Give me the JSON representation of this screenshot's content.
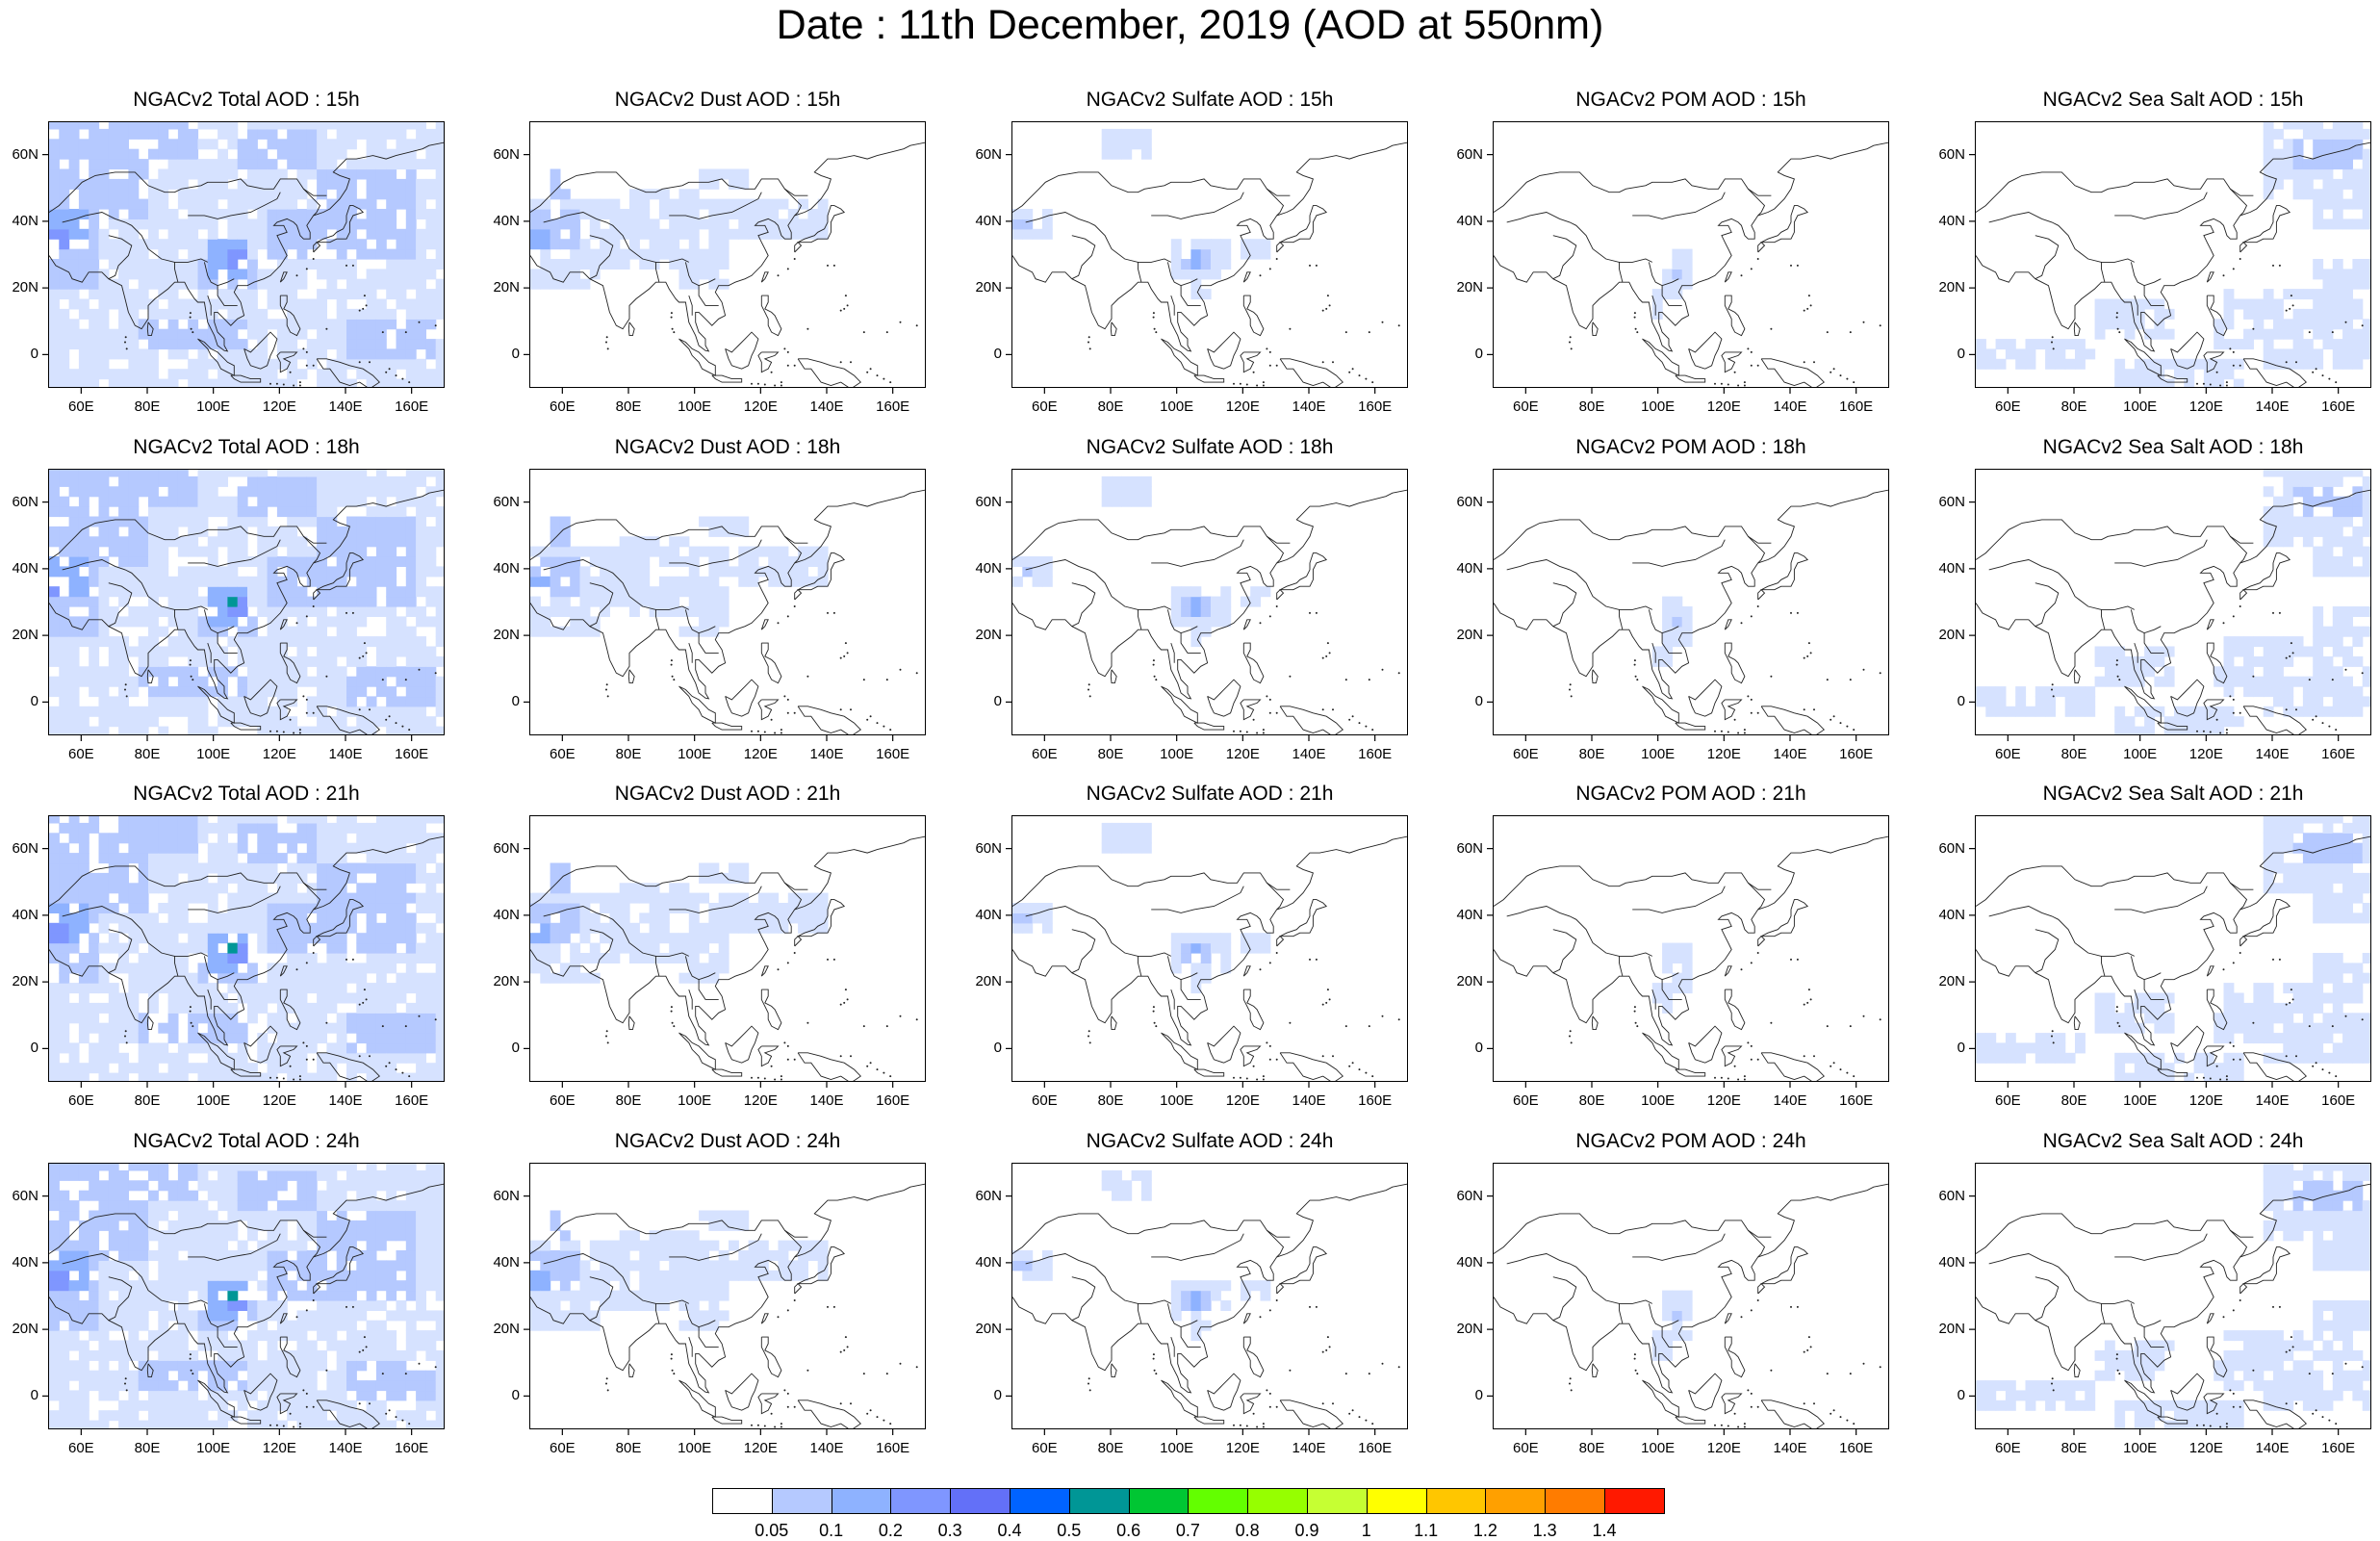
{
  "title": "Date : 11th December, 2019 (AOD at 550nm)",
  "rows": [
    "15h",
    "18h",
    "21h",
    "24h"
  ],
  "panels": [
    [
      "NGACv2 Total AOD : 15h",
      "NGACv2 Dust AOD : 15h",
      "NGACv2 Sulfate AOD : 15h",
      "NGACv2 POM AOD : 15h",
      "NGACv2 Sea Salt AOD : 15h"
    ],
    [
      "NGACv2 Total AOD : 18h",
      "NGACv2 Dust AOD : 18h",
      "NGACv2 Sulfate AOD : 18h",
      "NGACv2 POM AOD : 18h",
      "NGACv2 Sea Salt AOD : 18h"
    ],
    [
      "NGACv2 Total AOD : 21h",
      "NGACv2 Dust AOD : 21h",
      "NGACv2 Sulfate AOD : 21h",
      "NGACv2 POM AOD : 21h",
      "NGACv2 Sea Salt AOD : 21h"
    ],
    [
      "NGACv2 Total AOD : 24h",
      "NGACv2 Dust AOD : 24h",
      "NGACv2 Sulfate AOD : 24h",
      "NGACv2 POM AOD : 24h",
      "NGACv2 Sea Salt  AOD : 24h"
    ]
  ],
  "map_extent": {
    "lon": [
      50,
      170
    ],
    "lat": [
      -10,
      70
    ]
  },
  "lon_ticks": [
    {
      "value": 60,
      "label": "60E"
    },
    {
      "value": 80,
      "label": "80E"
    },
    {
      "value": 100,
      "label": "100E"
    },
    {
      "value": 120,
      "label": "120E"
    },
    {
      "value": 140,
      "label": "140E"
    },
    {
      "value": 160,
      "label": "160E"
    }
  ],
  "lat_ticks": [
    {
      "value": 60,
      "label": "60N"
    },
    {
      "value": 40,
      "label": "40N"
    },
    {
      "value": 20,
      "label": "20N"
    },
    {
      "value": 0,
      "label": "0"
    }
  ],
  "colorbar": {
    "labels": [
      "0.05",
      "0.1",
      "0.2",
      "0.3",
      "0.4",
      "0.5",
      "0.6",
      "0.7",
      "0.8",
      "0.9",
      "1",
      "1.1",
      "1.2",
      "1.3",
      "1.4"
    ],
    "colors": [
      "#ffffff",
      "#d6e2ff",
      "#b5c9ff",
      "#8eb2ff",
      "#7f96ff",
      "#6370f8",
      "#0063ff",
      "#009696",
      "#00c633",
      "#63ff00",
      "#96ff00",
      "#c6ff33",
      "#ffff00",
      "#ffc600",
      "#ffa000",
      "#ff7c00",
      "#ff1900"
    ]
  }
}
